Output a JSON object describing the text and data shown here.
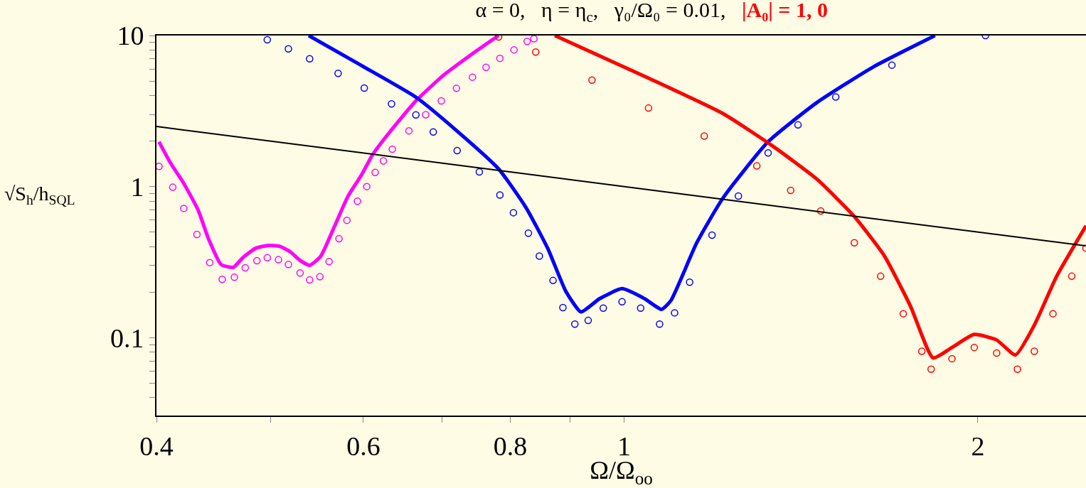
{
  "chart_data": {
    "type": "line",
    "title": "α = 0,   η = η$_{c}$,   γ₀/Ω₀ = 0.01,   ",
    "annotations": [
      "|A₀| = 1, 0"
    ],
    "xlabel": "Ω/Ω$_{oo}$",
    "ylabel": "√S$_{h}$/h$_{SQL}$",
    "log": "xy",
    "xlim": [
      0.4,
      2.472
    ],
    "ylim": [
      0.0305,
      10
    ],
    "xticks": [
      0.4,
      {
        "value": 0.5,
        "label": null
      },
      0.6,
      {
        "value": 0.7,
        "label": null
      },
      0.8,
      {
        "value": 0.9,
        "label": null
      },
      1,
      2
    ],
    "yticks": [
      {
        "value": 0.04,
        "label": null
      },
      {
        "value": 0.05,
        "label": null
      },
      {
        "value": 0.06,
        "label": null
      },
      {
        "value": 0.07,
        "label": null
      },
      {
        "value": 0.08,
        "label": null
      },
      {
        "value": 0.09,
        "label": null
      },
      0.1,
      {
        "value": 0.2,
        "label": null
      },
      {
        "value": 0.3,
        "label": null
      },
      {
        "value": 0.4,
        "label": null
      },
      {
        "value": 0.5,
        "label": null
      },
      {
        "value": 0.6,
        "label": null
      },
      {
        "value": 0.7,
        "label": null
      },
      {
        "value": 0.8,
        "label": null
      },
      {
        "value": 0.9,
        "label": null
      },
      1,
      {
        "value": 2,
        "label": null
      },
      {
        "value": 3,
        "label": null
      },
      {
        "value": 4,
        "label": null
      },
      {
        "value": 5,
        "label": null
      },
      {
        "value": 6,
        "label": null
      },
      {
        "value": 7,
        "label": null
      },
      {
        "value": 8,
        "label": null
      },
      {
        "value": 9,
        "label": null
      },
      10
    ],
    "series": [
      {
        "color": "#ff00ff",
        "x": [
          0.402,
          0.411,
          0.422,
          0.434,
          0.443,
          0.454,
          0.465,
          0.474,
          0.486,
          0.498,
          0.509,
          0.52,
          0.529,
          0.54,
          0.552,
          0.567,
          0.582,
          0.598,
          0.611,
          0.631,
          0.666,
          0.702,
          0.741,
          0.782
        ],
        "values": [
          1.98,
          1.44,
          1.05,
          0.7,
          0.45,
          0.305,
          0.292,
          0.34,
          0.391,
          0.408,
          0.403,
          0.37,
          0.328,
          0.301,
          0.347,
          0.546,
          0.86,
          1.2,
          1.63,
          2.27,
          3.74,
          5.46,
          7.47,
          10
        ]
      },
      {
        "type": "scatter",
        "marker": "circle",
        "color": "#ff00ff",
        "x": [
          0.402,
          0.413,
          0.422,
          0.433,
          0.444,
          0.455,
          0.466,
          0.476,
          0.487,
          0.497,
          0.508,
          0.518,
          0.53,
          0.54,
          0.551,
          0.561,
          0.572,
          0.581,
          0.593,
          0.604,
          0.614,
          0.624,
          0.635,
          0.656,
          0.678,
          0.699,
          0.72,
          0.743,
          0.763,
          0.784,
          0.806,
          0.827,
          0.838
        ],
        "values": [
          1.36,
          0.99,
          0.717,
          0.482,
          0.314,
          0.243,
          0.251,
          0.29,
          0.323,
          0.338,
          0.328,
          0.305,
          0.268,
          0.241,
          0.253,
          0.319,
          0.452,
          0.598,
          0.8,
          1.0,
          1.24,
          1.48,
          1.77,
          2.34,
          2.99,
          3.69,
          4.47,
          5.3,
          6.16,
          7.06,
          8.04,
          9.14,
          9.53
        ]
      },
      {
        "color": "#0000ff",
        "x": [
          0.539,
          0.598,
          0.665,
          0.721,
          0.782,
          0.825,
          0.861,
          0.892,
          0.919,
          0.953,
          0.996,
          1.041,
          1.076,
          1.096,
          1.153,
          1.214,
          1.326,
          1.459,
          1.629,
          1.839
        ],
        "values": [
          10,
          6.32,
          3.91,
          2.33,
          1.31,
          0.727,
          0.39,
          0.203,
          0.148,
          0.181,
          0.211,
          0.181,
          0.154,
          0.176,
          0.425,
          0.842,
          1.98,
          3.6,
          6.19,
          10
        ]
      },
      {
        "type": "scatter",
        "marker": "circle",
        "color": "#0000ff",
        "x": [
          0.497,
          0.518,
          0.54,
          0.571,
          0.601,
          0.634,
          0.665,
          0.688,
          0.721,
          0.753,
          0.784,
          0.805,
          0.829,
          0.847,
          0.87,
          0.887,
          0.908,
          0.932,
          0.96,
          0.996,
          1.033,
          1.072,
          1.104,
          1.137,
          1.188,
          1.251,
          1.326,
          1.406,
          1.514,
          1.69,
          2.03
        ],
        "values": [
          9.37,
          8.17,
          7.01,
          5.62,
          4.49,
          3.53,
          2.98,
          2.3,
          1.73,
          1.25,
          0.88,
          0.672,
          0.492,
          0.347,
          0.239,
          0.158,
          0.123,
          0.13,
          0.157,
          0.173,
          0.157,
          0.123,
          0.146,
          0.233,
          0.477,
          0.866,
          1.67,
          2.56,
          3.92,
          6.37,
          10
        ]
      },
      {
        "color": "#ff0000",
        "x": [
          0.873,
          1.049,
          1.214,
          1.336,
          1.459,
          1.57,
          1.665,
          1.753,
          1.832,
          1.901,
          1.986,
          2.075,
          2.153,
          2.234,
          2.334,
          2.472
        ],
        "values": [
          10,
          5.22,
          3.04,
          1.87,
          1.12,
          0.633,
          0.348,
          0.161,
          0.0734,
          0.0861,
          0.105,
          0.0965,
          0.0768,
          0.121,
          0.255,
          0.55
        ]
      },
      {
        "type": "scatter",
        "marker": "circle",
        "color": "#ff0000",
        "x": [
          0.782,
          0.841,
          0.939,
          1.049,
          1.17,
          1.297,
          1.386,
          1.47,
          1.57,
          1.653,
          1.728,
          1.792,
          1.825,
          1.901,
          1.986,
          2.075,
          2.161,
          2.234,
          2.317,
          2.404,
          2.472
        ],
        "values": [
          9.78,
          7.78,
          5.07,
          3.31,
          2.16,
          1.37,
          0.944,
          0.69,
          0.425,
          0.255,
          0.144,
          0.0813,
          0.0618,
          0.0726,
          0.0861,
          0.0791,
          0.0618,
          0.0813,
          0.144,
          0.255,
          0.391
        ]
      },
      {
        "color": "#000000",
        "x": [
          0.4,
          2.47
        ],
        "values": [
          2.5,
          0.405
        ]
      }
    ]
  }
}
